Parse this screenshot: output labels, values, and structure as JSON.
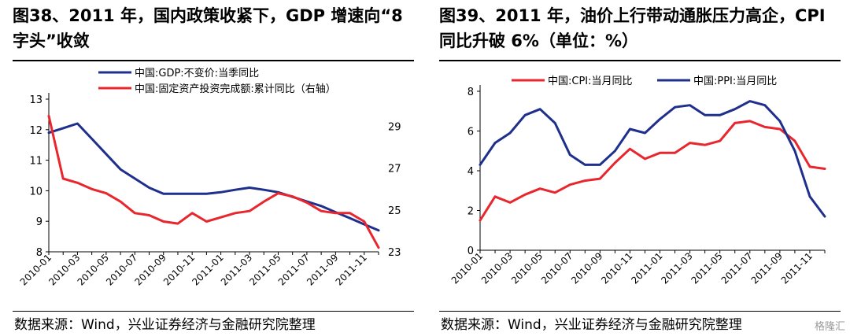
{
  "left": {
    "title": "图38、2011 年，国内政策收紧下，GDP 增速向“8字头”收敛",
    "source": "数据来源：Wind，兴业证券经济与金融研究院整理",
    "chart_data": {
      "type": "line",
      "x": [
        "2010-01",
        "2010-02",
        "2010-03",
        "2010-04",
        "2010-05",
        "2010-06",
        "2010-07",
        "2010-08",
        "2010-09",
        "2010-10",
        "2010-11",
        "2010-12",
        "2011-01",
        "2011-02",
        "2011-03",
        "2011-04",
        "2011-05",
        "2011-06",
        "2011-07",
        "2011-08",
        "2011-09",
        "2011-10",
        "2011-11",
        "2011-12"
      ],
      "x_tick_labels": [
        "2010-01",
        "2010-03",
        "2010-05",
        "2010-07",
        "2010-09",
        "2010-11",
        "2011-01",
        "2011-03",
        "2011-05",
        "2011-07",
        "2011-09",
        "2011-11"
      ],
      "y_left": {
        "ticks": [
          8,
          9,
          10,
          11,
          12,
          13
        ],
        "ylim": [
          8,
          13
        ]
      },
      "y_right": {
        "ticks": [
          23,
          25,
          27,
          29
        ],
        "ylim": [
          23,
          30.3
        ]
      },
      "legend_position": "top-left",
      "grid": false,
      "series": [
        {
          "name": "中国:GDP:不变价:当季同比",
          "axis": "left",
          "color": "#1f2f8c",
          "values": [
            11.9,
            12.05,
            12.2,
            11.7,
            11.2,
            10.7,
            10.4,
            10.1,
            9.9,
            9.9,
            9.9,
            9.9,
            9.95,
            10.03,
            10.1,
            10.03,
            9.95,
            9.8,
            9.65,
            9.5,
            9.3,
            9.1,
            8.9,
            8.7
          ]
        },
        {
          "name": "中国:固定资产投资完成额:累计同比（右轴）",
          "axis": "right",
          "color": "#e8262d",
          "values": [
            29.5,
            26.5,
            26.3,
            26.0,
            25.8,
            25.4,
            24.85,
            24.75,
            24.45,
            24.35,
            24.85,
            24.45,
            24.65,
            24.85,
            24.95,
            25.4,
            25.8,
            25.65,
            25.35,
            24.95,
            24.85,
            24.85,
            24.45,
            23.2
          ]
        }
      ]
    }
  },
  "right": {
    "title": "图39、2011 年，油价上行带动通胀压力高企，CPI 同比升破 6%（单位：%）",
    "source": "数据来源：Wind，兴业证券经济与金融研究院整理",
    "watermark": "格隆汇",
    "chart_data": {
      "type": "line",
      "x": [
        "2010-01",
        "2010-02",
        "2010-03",
        "2010-04",
        "2010-05",
        "2010-06",
        "2010-07",
        "2010-08",
        "2010-09",
        "2010-10",
        "2010-11",
        "2010-12",
        "2011-01",
        "2011-02",
        "2011-03",
        "2011-04",
        "2011-05",
        "2011-06",
        "2011-07",
        "2011-08",
        "2011-09",
        "2011-10",
        "2011-11",
        "2011-12"
      ],
      "x_tick_labels": [
        "2010-01",
        "2010-03",
        "2010-05",
        "2010-07",
        "2010-09",
        "2010-11",
        "2011-01",
        "2011-03",
        "2011-05",
        "2011-07",
        "2011-09",
        "2011-11"
      ],
      "y_left": {
        "ticks": [
          0,
          2,
          4,
          6,
          8
        ],
        "ylim": [
          0,
          8
        ]
      },
      "legend_position": "top",
      "grid": false,
      "series": [
        {
          "name": "中国:CPI:当月同比",
          "axis": "left",
          "color": "#e8262d",
          "values": [
            1.5,
            2.7,
            2.4,
            2.8,
            3.1,
            2.9,
            3.3,
            3.5,
            3.6,
            4.4,
            5.1,
            4.6,
            4.9,
            4.9,
            5.4,
            5.3,
            5.5,
            6.4,
            6.5,
            6.2,
            6.1,
            5.5,
            4.2,
            4.1
          ]
        },
        {
          "name": "中国:PPI:当月同比",
          "axis": "left",
          "color": "#1f2f8c",
          "values": [
            4.3,
            5.4,
            5.9,
            6.8,
            7.1,
            6.4,
            4.8,
            4.3,
            4.3,
            5.0,
            6.1,
            5.9,
            6.6,
            7.2,
            7.3,
            6.8,
            6.8,
            7.1,
            7.5,
            7.3,
            6.5,
            5.0,
            2.7,
            1.7
          ]
        }
      ]
    }
  }
}
